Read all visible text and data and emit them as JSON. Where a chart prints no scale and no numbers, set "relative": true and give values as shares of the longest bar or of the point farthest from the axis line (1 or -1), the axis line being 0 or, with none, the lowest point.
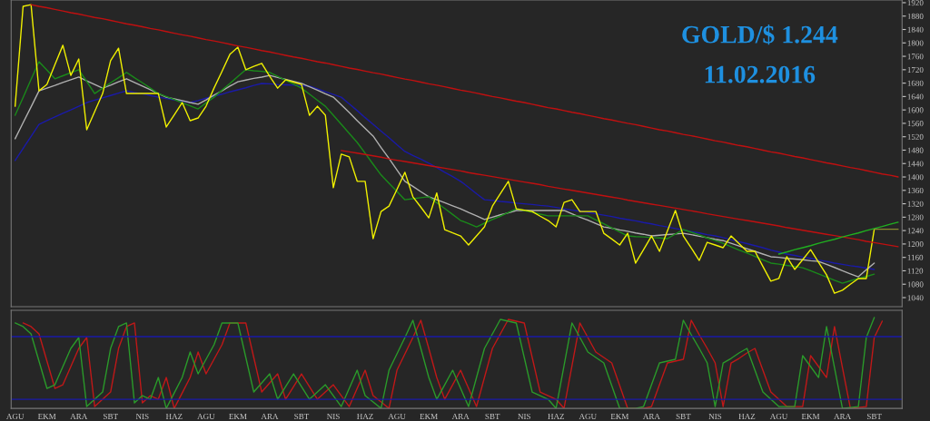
{
  "chart_data": [
    {
      "type": "line",
      "title": "GOLD/$ 1.244",
      "subtitle": "11.02.2016",
      "ylim": [
        1013,
        1928
      ],
      "yticks": [
        1040,
        1080,
        1120,
        1160,
        1200,
        1240,
        1280,
        1320,
        1360,
        1400,
        1440,
        1480,
        1520,
        1560,
        1600,
        1640,
        1680,
        1720,
        1760,
        1800,
        1840,
        1880,
        1920
      ],
      "tick_labels": "y",
      "grid": false,
      "categories": [
        null,
        null,
        null,
        null,
        null,
        null,
        null,
        null,
        null,
        null,
        null,
        null,
        null,
        null,
        null,
        null,
        null,
        null,
        null,
        null,
        null,
        null,
        null,
        null,
        null,
        null,
        null,
        null,
        null,
        null,
        null,
        null,
        null,
        null,
        null,
        null,
        null,
        null,
        null,
        null,
        null,
        null,
        null,
        null,
        null,
        null,
        null,
        null,
        null,
        null,
        null,
        null,
        null,
        null,
        null,
        null,
        null,
        null,
        null,
        null,
        null,
        null,
        null,
        null,
        null,
        null,
        null,
        null,
        null,
        null,
        null,
        null,
        null,
        null,
        null,
        null,
        null,
        null,
        null,
        null,
        null,
        null,
        null,
        null,
        null,
        null,
        null,
        null,
        null,
        null,
        null,
        null,
        null,
        null,
        null,
        null,
        null,
        null,
        null,
        null,
        null,
        null,
        null,
        null,
        null,
        null,
        null,
        null,
        null,
        null,
        null,
        null
      ],
      "series": [
        {
          "color": "#1a1aa8",
          "values": [
            1449,
            1485,
            1521,
            1557,
            1568,
            1579,
            1590,
            1600,
            1611,
            1622,
            1629,
            1636,
            1643,
            1650,
            1657,
            1652,
            1648,
            1643,
            1638,
            1634,
            1630,
            1626,
            1622,
            1628,
            1635,
            1641,
            1647,
            1654,
            1660,
            1666,
            1673,
            1679,
            1678,
            1676,
            1675,
            1674,
            1672,
            1671,
            1663,
            1654,
            1646,
            1638,
            1618,
            1598,
            1577,
            1557,
            1537,
            1517,
            1496,
            1476,
            1464,
            1453,
            1441,
            1428,
            1414,
            1401,
            1387,
            1369,
            1350,
            1332,
            1330,
            1327,
            1325,
            1322,
            1320,
            1318,
            1315,
            1313,
            1309,
            1305,
            1301,
            1298,
            1294,
            1290,
            1286,
            1282,
            1277,
            1273,
            1269,
            1264,
            1260,
            1255,
            1251,
            1246,
            1242,
            1237,
            1233,
            1228,
            1224,
            1219,
            1213,
            1207,
            1201,
            1195,
            1189,
            1182,
            1176,
            1170,
            1166,
            1161,
            1157,
            1152,
            1148,
            1143,
            1139,
            1135,
            1132,
            1128,
            1124,
            null,
            null,
            null
          ]
        },
        {
          "color": "#b0b0b0",
          "values": [
            1514,
            1562,
            1609,
            1657,
            1665,
            1673,
            1682,
            1690,
            1698,
            1687,
            1676,
            1665,
            1674,
            1684,
            1693,
            1682,
            1671,
            1660,
            1649,
            1638,
            1633,
            1628,
            1622,
            1617,
            1630,
            1644,
            1657,
            1671,
            1684,
            1689,
            1694,
            1698,
            1703,
            1697,
            1691,
            1685,
            1679,
            1669,
            1659,
            1648,
            1638,
            1615,
            1592,
            1568,
            1545,
            1522,
            1488,
            1455,
            1421,
            1387,
            1372,
            1356,
            1341,
            1332,
            1323,
            1314,
            1305,
            1294,
            1284,
            1273,
            1280,
            1287,
            1293,
            1300,
            1300,
            1300,
            1300,
            1300,
            1300,
            1300,
            1290,
            1280,
            1271,
            1261,
            1251,
            1247,
            1242,
            1238,
            1233,
            1229,
            1224,
            1226,
            1228,
            1230,
            1232,
            1228,
            1223,
            1219,
            1214,
            1210,
            1202,
            1194,
            1186,
            1178,
            1170,
            1162,
            1160,
            1157,
            1155,
            1153,
            1150,
            1148,
            1139,
            1130,
            1120,
            1111,
            1102,
            1123,
            1143,
            null,
            null,
            null
          ]
        },
        {
          "color": "#1a8a1a",
          "values": [
            1584,
            1637,
            1691,
            1744,
            1719,
            1693,
            1702,
            1711,
            1720,
            1685,
            1649,
            1665,
            1681,
            1696,
            1712,
            1696,
            1681,
            1665,
            1649,
            1640,
            1631,
            1621,
            1612,
            1603,
            1621,
            1638,
            1659,
            1679,
            1700,
            1720,
            1717,
            1715,
            1712,
            1700,
            1689,
            1677,
            1665,
            1647,
            1629,
            1611,
            1584,
            1557,
            1530,
            1503,
            1471,
            1438,
            1406,
            1381,
            1357,
            1332,
            1335,
            1338,
            1341,
            1323,
            1306,
            1288,
            1270,
            1261,
            1251,
            1262,
            1273,
            1283,
            1294,
            1305,
            1300,
            1295,
            1289,
            1284,
            1284,
            1284,
            1284,
            1284,
            1284,
            1272,
            1260,
            1248,
            1236,
            1224,
            1222,
            1221,
            1219,
            1218,
            1216,
            1230,
            1243,
            1235,
            1227,
            1218,
            1210,
            1202,
            1192,
            1182,
            1173,
            1163,
            1153,
            1143,
            1140,
            1136,
            1133,
            1129,
            1120,
            1111,
            1101,
            1092,
            1083,
            1090,
            1097,
            1103,
            1110,
            null,
            null,
            null
          ]
        },
        {
          "color": "#f0f000",
          "values": [
            1611,
            1909,
            1914,
            1657,
            1676,
            1735,
            1793,
            1703,
            1752,
            1541,
            1595,
            1649,
            1747,
            1784,
            1649,
            1649,
            1649,
            1649,
            1649,
            1549,
            1585,
            1622,
            1568,
            1576,
            1611,
            1665,
            1715,
            1766,
            1787,
            1720,
            1730,
            1739,
            1700,
            1665,
            1690,
            1683,
            1676,
            1584,
            1611,
            1584,
            1368,
            1468,
            1460,
            1387,
            1387,
            1216,
            1297,
            1313,
            1363,
            1414,
            1341,
            1310,
            1278,
            1352,
            1243,
            1233,
            1224,
            1197,
            1224,
            1251,
            1313,
            1350,
            1387,
            1305,
            1301,
            1297,
            1283,
            1270,
            1251,
            1324,
            1332,
            1297,
            1297,
            1297,
            1232,
            1215,
            1197,
            1232,
            1143,
            1183,
            1224,
            1178,
            1239,
            1300,
            1224,
            1188,
            1151,
            1205,
            1197,
            1189,
            1224,
            1201,
            1178,
            1178,
            1133,
            1089,
            1097,
            1162,
            1124,
            1153,
            1183,
            1145,
            1108,
            1053,
            1062,
            1080,
            1097,
            1097,
            1244,
            null,
            null,
            null
          ]
        },
        {
          "color": "#c01010",
          "values": [
            null,
            null,
            1914,
            1909,
            1905,
            1900,
            1895,
            1890,
            1886,
            1881,
            1876,
            1872,
            1867,
            1862,
            1857,
            1853,
            1848,
            1843,
            1839,
            1834,
            1829,
            1824,
            1820,
            1815,
            1810,
            1806,
            1801,
            1796,
            1791,
            1787,
            1782,
            1777,
            1773,
            1768,
            1763,
            1758,
            1754,
            1749,
            1744,
            1740,
            1735,
            1730,
            1725,
            1721,
            1716,
            1711,
            1707,
            1702,
            1697,
            1692,
            1688,
            1683,
            1678,
            1674,
            1669,
            1664,
            1659,
            1655,
            1650,
            1645,
            1640,
            1636,
            1631,
            1626,
            1622,
            1617,
            1612,
            1607,
            1603,
            1598,
            1593,
            1589,
            1584,
            1579,
            1574,
            1570,
            1565,
            1560,
            1556,
            1551,
            1546,
            1541,
            1537,
            1532,
            1527,
            1523,
            1518,
            1513,
            1508,
            1504,
            1499,
            1494,
            1490,
            1485,
            1480,
            1475,
            1471,
            1466,
            1461,
            1457,
            1452,
            1447,
            1442,
            1438,
            1433,
            1428,
            1424,
            1419,
            1414,
            1409,
            1405,
            1400
          ]
        },
        {
          "color": "#c01010",
          "values": [
            null,
            null,
            null,
            null,
            null,
            null,
            null,
            null,
            null,
            null,
            null,
            null,
            null,
            null,
            null,
            null,
            null,
            null,
            null,
            null,
            null,
            null,
            null,
            null,
            null,
            null,
            null,
            null,
            null,
            null,
            null,
            null,
            null,
            null,
            null,
            null,
            null,
            null,
            null,
            null,
            null,
            1479,
            1475,
            1471,
            1467,
            1463,
            1459,
            1454,
            1450,
            1446,
            1442,
            1438,
            1434,
            1430,
            1426,
            1422,
            1418,
            1413,
            1409,
            1405,
            1401,
            1397,
            1393,
            1389,
            1385,
            1381,
            1377,
            1372,
            1368,
            1364,
            1360,
            1356,
            1352,
            1348,
            1344,
            1340,
            1336,
            1331,
            1327,
            1323,
            1319,
            1315,
            1311,
            1307,
            1303,
            1299,
            1295,
            1290,
            1286,
            1282,
            1278,
            1274,
            1270,
            1266,
            1262,
            1258,
            1254,
            1249,
            1245,
            1241,
            1237,
            1233,
            1229,
            1225,
            1221,
            1217,
            1213,
            1208,
            1204,
            1200,
            1196,
            1192
          ]
        },
        {
          "color": "#20b020",
          "values": [
            null,
            null,
            null,
            null,
            null,
            null,
            null,
            null,
            null,
            null,
            null,
            null,
            null,
            null,
            null,
            null,
            null,
            null,
            null,
            null,
            null,
            null,
            null,
            null,
            null,
            null,
            null,
            null,
            null,
            null,
            null,
            null,
            null,
            null,
            null,
            null,
            null,
            null,
            null,
            null,
            null,
            null,
            null,
            null,
            null,
            null,
            null,
            null,
            null,
            null,
            null,
            null,
            null,
            null,
            null,
            null,
            null,
            null,
            null,
            null,
            null,
            null,
            null,
            null,
            null,
            null,
            null,
            null,
            null,
            null,
            null,
            null,
            null,
            null,
            null,
            null,
            null,
            null,
            null,
            null,
            null,
            null,
            null,
            null,
            null,
            null,
            null,
            null,
            null,
            null,
            null,
            null,
            null,
            null,
            null,
            null,
            1170,
            1176,
            1183,
            1189,
            1195,
            1202,
            1208,
            1214,
            1221,
            1227,
            1233,
            1240,
            1246,
            1252,
            1259,
            1265
          ]
        },
        {
          "color": "#8a8a30",
          "values": [
            null,
            null,
            null,
            null,
            null,
            null,
            null,
            null,
            null,
            null,
            null,
            null,
            null,
            null,
            null,
            null,
            null,
            null,
            null,
            null,
            null,
            null,
            null,
            null,
            null,
            null,
            null,
            null,
            null,
            null,
            null,
            null,
            null,
            null,
            null,
            null,
            null,
            null,
            null,
            null,
            null,
            null,
            null,
            null,
            null,
            null,
            null,
            null,
            null,
            null,
            null,
            null,
            null,
            null,
            null,
            null,
            null,
            null,
            null,
            null,
            null,
            null,
            null,
            null,
            null,
            null,
            null,
            null,
            null,
            null,
            null,
            null,
            null,
            null,
            null,
            null,
            null,
            null,
            null,
            null,
            null,
            null,
            null,
            null,
            null,
            null,
            null,
            null,
            null,
            null,
            null,
            null,
            null,
            null,
            null,
            null,
            null,
            null,
            null,
            null,
            null,
            null,
            null,
            null,
            null,
            null,
            null,
            null,
            1244,
            1244,
            1244,
            1244
          ]
        }
      ]
    },
    {
      "type": "line",
      "relative": true,
      "tick_labels": "x",
      "grid": false,
      "categories": [
        "AGU",
        null,
        null,
        null,
        "EKM",
        null,
        null,
        null,
        "ARA",
        null,
        null,
        null,
        "SBT",
        null,
        null,
        null,
        "NIS",
        null,
        null,
        null,
        "HAZ",
        null,
        null,
        null,
        "AGU",
        null,
        null,
        null,
        "EKM",
        null,
        null,
        null,
        "ARA",
        null,
        null,
        null,
        "SBT",
        null,
        null,
        null,
        "NIS",
        null,
        null,
        null,
        "HAZ",
        null,
        null,
        null,
        "AGU",
        null,
        null,
        null,
        "EKM",
        null,
        null,
        null,
        "ARA",
        null,
        null,
        null,
        "SBT",
        null,
        null,
        null,
        "NIS",
        null,
        null,
        null,
        "HAZ",
        null,
        null,
        null,
        "AGU",
        null,
        null,
        null,
        "EKM",
        null,
        null,
        null,
        "ARA",
        null,
        null,
        null,
        "SBT",
        null,
        null,
        null,
        "NIS",
        null,
        null,
        null,
        "HAZ",
        null,
        null,
        null,
        "AGU",
        null,
        null,
        null,
        "EKM",
        null,
        null,
        null,
        "ARA",
        null,
        null,
        null,
        "SBT",
        null,
        null,
        null
      ],
      "ref_lines": [
        {
          "axis": "y",
          "value": 0.79,
          "color": "#1a1aa8"
        },
        {
          "axis": "y",
          "value": 0.1,
          "color": "#1a1aa8"
        }
      ],
      "series": [
        {
          "color": "#c01818",
          "values": [
            null,
            0.94,
            0.9,
            0.82,
            0.52,
            0.22,
            0.26,
            0.46,
            0.66,
            0.78,
            0.02,
            0.1,
            0.18,
            0.66,
            0.9,
            0.94,
            0.06,
            0.14,
            0.1,
            0.34,
            0.0,
            0.17,
            0.34,
            0.62,
            0.38,
            0.54,
            0.7,
            0.94,
            0.94,
            0.94,
            0.56,
            0.18,
            0.28,
            0.38,
            0.1,
            0.24,
            0.38,
            0.24,
            0.1,
            0.18,
            0.26,
            0.14,
            0.02,
            0.22,
            0.42,
            0.14,
            0.07,
            0.0,
            0.42,
            0.6,
            0.78,
            0.97,
            0.66,
            0.34,
            0.1,
            0.26,
            0.42,
            0.22,
            0.02,
            0.34,
            0.66,
            0.82,
            0.98,
            0.96,
            0.94,
            0.56,
            0.18,
            0.14,
            0.1,
            0.0,
            0.47,
            0.94,
            0.78,
            0.62,
            0.56,
            0.5,
            0.25,
            0.0,
            0.0,
            0.0,
            0.02,
            0.26,
            0.5,
            0.52,
            0.54,
            0.97,
            0.81,
            0.66,
            0.5,
            0.02,
            0.5,
            0.55,
            0.61,
            0.66,
            0.42,
            0.18,
            0.1,
            0.02,
            0.02,
            0.02,
            0.58,
            0.46,
            0.34,
            0.9,
            0.45,
            0.0,
            0.01,
            0.02,
            0.78,
            0.96,
            null,
            null
          ]
        },
        {
          "color": "#2a9a2a",
          "values": [
            0.94,
            0.9,
            0.82,
            0.52,
            0.22,
            0.26,
            0.46,
            0.66,
            0.78,
            0.02,
            0.1,
            0.18,
            0.66,
            0.9,
            0.94,
            0.06,
            0.14,
            0.1,
            0.34,
            0.0,
            0.17,
            0.34,
            0.62,
            0.38,
            0.54,
            0.7,
            0.94,
            0.94,
            0.94,
            0.56,
            0.18,
            0.28,
            0.38,
            0.1,
            0.24,
            0.38,
            0.24,
            0.1,
            0.18,
            0.26,
            0.14,
            0.02,
            0.22,
            0.42,
            0.14,
            0.07,
            0.0,
            0.42,
            0.6,
            0.78,
            0.97,
            0.66,
            0.34,
            0.1,
            0.26,
            0.42,
            0.22,
            0.02,
            0.34,
            0.66,
            0.82,
            0.98,
            0.96,
            0.94,
            0.56,
            0.18,
            0.14,
            0.1,
            0.0,
            0.47,
            0.94,
            0.78,
            0.62,
            0.56,
            0.5,
            0.25,
            0.0,
            0.0,
            0.0,
            0.02,
            0.26,
            0.5,
            0.52,
            0.54,
            0.97,
            0.81,
            0.66,
            0.5,
            0.02,
            0.5,
            0.55,
            0.61,
            0.66,
            0.42,
            0.18,
            0.1,
            0.02,
            0.02,
            0.02,
            0.58,
            0.46,
            0.34,
            0.9,
            0.45,
            0.0,
            0.01,
            0.02,
            0.78,
            1.0,
            null,
            null,
            null
          ]
        }
      ]
    }
  ]
}
